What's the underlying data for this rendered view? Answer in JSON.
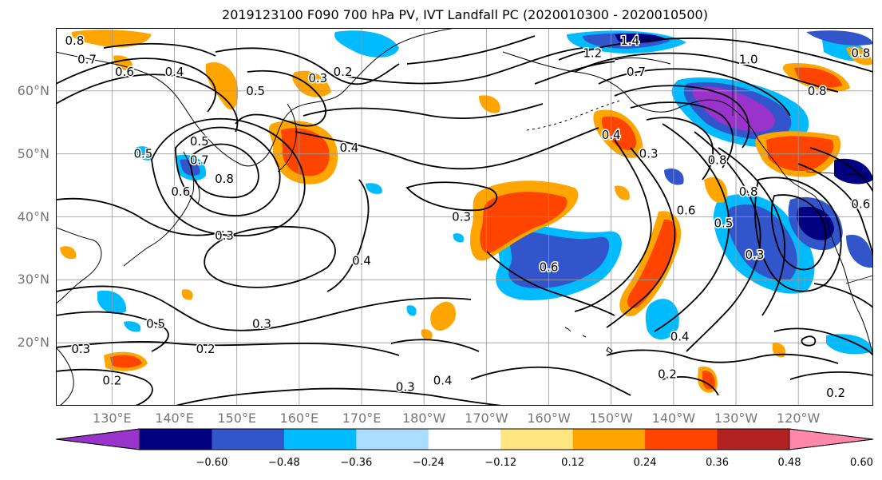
{
  "title": "2019123100 F090 700 hPa PV, IVT Landfall PC (2020010300 - 2020010500)",
  "axes": {
    "lat_labels": [
      "60°N",
      "50°N",
      "40°N",
      "30°N",
      "20°N"
    ],
    "lon_labels": [
      "130°E",
      "140°E",
      "150°E",
      "160°E",
      "170°E",
      "180°W",
      "170°W",
      "160°W",
      "150°W",
      "140°W",
      "130°W",
      "120°W"
    ],
    "lat_values": [
      60,
      50,
      40,
      30,
      20
    ],
    "lon_values": [
      130,
      140,
      150,
      160,
      170,
      180,
      190,
      200,
      210,
      220,
      230,
      240
    ],
    "lat_range": [
      10,
      70
    ],
    "lon_range": [
      121,
      252
    ],
    "grid": true
  },
  "colorbar": {
    "tick_labels": [
      "−0.60",
      "−0.48",
      "−0.36",
      "−0.24",
      "−0.12",
      "0.12",
      "0.24",
      "0.36",
      "0.48",
      "0.60"
    ],
    "bounds": [
      -0.6,
      -0.48,
      -0.36,
      -0.24,
      -0.12,
      0.12,
      0.24,
      0.36,
      0.48,
      0.6
    ],
    "colors": [
      "#9933cc",
      "#000080",
      "#3355cc",
      "#00bbff",
      "#aaddff",
      "#ffffff",
      "#ffe680",
      "#ffa500",
      "#ff4400",
      "#b22222",
      "#ff88aa"
    ],
    "extend": "both"
  },
  "contour_labels": [
    {
      "text": "0.8",
      "lon": 124,
      "lat": 68
    },
    {
      "text": "0.7",
      "lon": 126,
      "lat": 65
    },
    {
      "text": "0.6",
      "lon": 132,
      "lat": 63
    },
    {
      "text": "0.4",
      "lon": 140,
      "lat": 63
    },
    {
      "text": "0.5",
      "lon": 153,
      "lat": 60
    },
    {
      "text": "0.3",
      "lon": 163,
      "lat": 62
    },
    {
      "text": "0.2",
      "lon": 167,
      "lat": 63
    },
    {
      "text": "1.2",
      "lon": 207,
      "lat": 66
    },
    {
      "text": "1.4",
      "lon": 213,
      "lat": 68
    },
    {
      "text": "0.7",
      "lon": 214,
      "lat": 63
    },
    {
      "text": "1.0",
      "lon": 232,
      "lat": 65
    },
    {
      "text": "0.8",
      "lon": 243,
      "lat": 60
    },
    {
      "text": "0.8",
      "lon": 250,
      "lat": 66
    },
    {
      "text": "0.5",
      "lon": 144,
      "lat": 52
    },
    {
      "text": "0.5",
      "lon": 135,
      "lat": 50
    },
    {
      "text": "0.7",
      "lon": 144,
      "lat": 49
    },
    {
      "text": "0.8",
      "lon": 148,
      "lat": 46
    },
    {
      "text": "0.6",
      "lon": 141,
      "lat": 44
    },
    {
      "text": "0.4",
      "lon": 168,
      "lat": 51
    },
    {
      "text": "0.3",
      "lon": 186,
      "lat": 40
    },
    {
      "text": "0.4",
      "lon": 170,
      "lat": 33
    },
    {
      "text": "0.3",
      "lon": 148,
      "lat": 37
    },
    {
      "text": "0.4",
      "lon": 210,
      "lat": 53
    },
    {
      "text": "0.3",
      "lon": 216,
      "lat": 50
    },
    {
      "text": "0.8",
      "lon": 227,
      "lat": 49
    },
    {
      "text": "0.6",
      "lon": 222,
      "lat": 41
    },
    {
      "text": "0.5",
      "lon": 228,
      "lat": 39
    },
    {
      "text": "0.8",
      "lon": 232,
      "lat": 44
    },
    {
      "text": "0.3",
      "lon": 233,
      "lat": 34
    },
    {
      "text": "0.6",
      "lon": 250,
      "lat": 42
    },
    {
      "text": "0.6",
      "lon": 200,
      "lat": 32
    },
    {
      "text": "0.5",
      "lon": 137,
      "lat": 23
    },
    {
      "text": "0.3",
      "lon": 125,
      "lat": 19
    },
    {
      "text": "0.3",
      "lon": 154,
      "lat": 23
    },
    {
      "text": "0.2",
      "lon": 145,
      "lat": 19
    },
    {
      "text": "0.2",
      "lon": 130,
      "lat": 14
    },
    {
      "text": "0.3",
      "lon": 177,
      "lat": 13
    },
    {
      "text": "0.4",
      "lon": 183,
      "lat": 14
    },
    {
      "text": "0.4",
      "lon": 221,
      "lat": 21
    },
    {
      "text": "0.2",
      "lon": 219,
      "lat": 15
    },
    {
      "text": "0.2",
      "lon": 246,
      "lat": 12
    }
  ]
}
